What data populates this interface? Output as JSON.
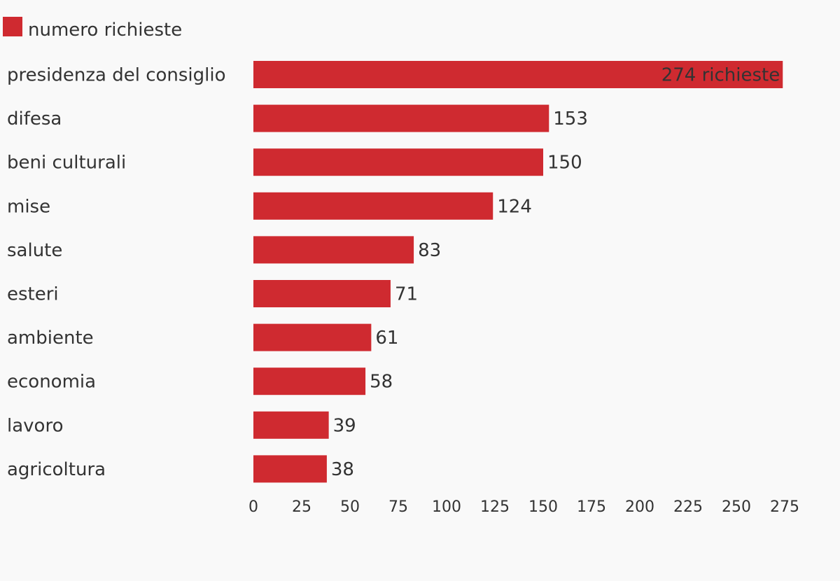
{
  "chart_data": {
    "type": "bar",
    "orientation": "horizontal",
    "legend": {
      "position": "top-left",
      "entries": [
        {
          "label": "numero richieste",
          "color": "#cf2a30"
        }
      ]
    },
    "categories": [
      "presidenza del consiglio",
      "difesa",
      "beni culturali",
      "mise",
      "salute",
      "esteri",
      "ambiente",
      "economia",
      "lavoro",
      "agricoltura"
    ],
    "series": [
      {
        "name": "numero richieste",
        "color": "#cf2a30",
        "values": [
          274,
          153,
          150,
          124,
          83,
          71,
          61,
          58,
          39,
          38
        ]
      }
    ],
    "value_labels": [
      "274 richieste",
      "153",
      "150",
      "124",
      "83",
      "71",
      "61",
      "58",
      "39",
      "38"
    ],
    "x_ticks": [
      "0",
      "25",
      "50",
      "75",
      "100",
      "125",
      "150",
      "175",
      "200",
      "225",
      "250",
      "275"
    ],
    "xlim": [
      0,
      275
    ],
    "grid": false
  }
}
